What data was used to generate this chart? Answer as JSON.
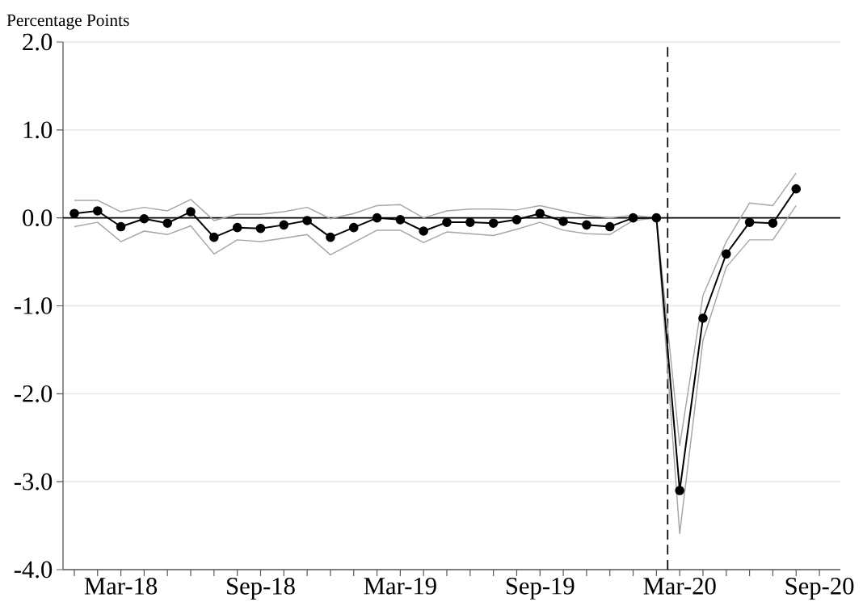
{
  "chart_data": {
    "type": "line",
    "ylabel": "Percentage Points",
    "x": [
      "2018-01",
      "2018-02",
      "2018-03",
      "2018-04",
      "2018-05",
      "2018-06",
      "2018-07",
      "2018-08",
      "2018-09",
      "2018-10",
      "2018-11",
      "2018-12",
      "2019-01",
      "2019-02",
      "2019-03",
      "2019-04",
      "2019-05",
      "2019-06",
      "2019-07",
      "2019-08",
      "2019-09",
      "2019-10",
      "2019-11",
      "2019-12",
      "2020-01",
      "2020-02",
      "2020-03",
      "2020-04",
      "2020-05",
      "2020-06",
      "2020-07",
      "2020-08"
    ],
    "series": [
      {
        "color": "#a6a6a6",
        "marker": "none",
        "values": [
          0.2,
          0.2,
          0.07,
          0.12,
          0.08,
          0.21,
          -0.03,
          0.04,
          0.04,
          0.07,
          0.12,
          -0.01,
          0.05,
          0.14,
          0.15,
          0.0,
          0.08,
          0.1,
          0.1,
          0.09,
          0.14,
          0.08,
          0.03,
          0.0,
          0.03,
          0.0,
          -2.59,
          -0.88,
          -0.27,
          0.17,
          0.14,
          0.51
        ]
      },
      {
        "color": "#a6a6a6",
        "marker": "none",
        "values": [
          -0.1,
          -0.05,
          -0.27,
          -0.15,
          -0.19,
          -0.09,
          -0.41,
          -0.25,
          -0.27,
          -0.23,
          -0.19,
          -0.42,
          -0.28,
          -0.14,
          -0.14,
          -0.28,
          -0.16,
          -0.18,
          -0.2,
          -0.13,
          -0.05,
          -0.14,
          -0.18,
          -0.19,
          -0.03,
          0.0,
          -3.59,
          -1.39,
          -0.56,
          -0.25,
          -0.25,
          0.14
        ]
      },
      {
        "color": "#000000",
        "marker": "circle",
        "values": [
          0.05,
          0.08,
          -0.1,
          -0.01,
          -0.06,
          0.07,
          -0.22,
          -0.11,
          -0.12,
          -0.08,
          -0.03,
          -0.22,
          -0.11,
          0.0,
          -0.02,
          -0.15,
          -0.05,
          -0.05,
          -0.06,
          -0.02,
          0.05,
          -0.04,
          -0.08,
          -0.1,
          0.0,
          0.0,
          -3.1,
          -1.14,
          -0.41,
          -0.05,
          -0.06,
          0.33
        ]
      }
    ],
    "xlim": [
      "2017-12-17",
      "2020-09-28"
    ],
    "xticks": [
      {
        "value": "2018-01",
        "label": null
      },
      {
        "value": "2018-02",
        "label": null
      },
      {
        "value": "2018-03",
        "label": "Mar-18"
      },
      {
        "value": "2018-04",
        "label": null
      },
      {
        "value": "2018-05",
        "label": null
      },
      {
        "value": "2018-06",
        "label": null
      },
      {
        "value": "2018-07",
        "label": null
      },
      {
        "value": "2018-08",
        "label": null
      },
      {
        "value": "2018-09",
        "label": "Sep-18"
      },
      {
        "value": "2018-10",
        "label": null
      },
      {
        "value": "2018-11",
        "label": null
      },
      {
        "value": "2018-12",
        "label": null
      },
      {
        "value": "2019-01",
        "label": null
      },
      {
        "value": "2019-02",
        "label": null
      },
      {
        "value": "2019-03",
        "label": "Mar-19"
      },
      {
        "value": "2019-04",
        "label": null
      },
      {
        "value": "2019-05",
        "label": null
      },
      {
        "value": "2019-06",
        "label": null
      },
      {
        "value": "2019-07",
        "label": null
      },
      {
        "value": "2019-08",
        "label": null
      },
      {
        "value": "2019-09",
        "label": "Sep-19"
      },
      {
        "value": "2019-10",
        "label": null
      },
      {
        "value": "2019-11",
        "label": null
      },
      {
        "value": "2019-12",
        "label": null
      },
      {
        "value": "2020-01",
        "label": null
      },
      {
        "value": "2020-02",
        "label": null
      },
      {
        "value": "2020-03",
        "label": "Mar-20"
      },
      {
        "value": "2020-04",
        "label": null
      },
      {
        "value": "2020-05",
        "label": null
      },
      {
        "value": "2020-06",
        "label": null
      },
      {
        "value": "2020-07",
        "label": null
      },
      {
        "value": "2020-08",
        "label": null
      },
      {
        "value": "2020-09",
        "label": "Sep-20"
      }
    ],
    "ylim": [
      -4,
      2
    ],
    "yticks": [
      {
        "value": -4,
        "label": "-4.0"
      },
      {
        "value": -3,
        "label": "-3.0"
      },
      {
        "value": -2,
        "label": "-2.0"
      },
      {
        "value": -1,
        "label": "-1.0"
      },
      {
        "value": 0,
        "label": "0.0"
      },
      {
        "value": 1,
        "label": "1.0"
      },
      {
        "value": 2,
        "label": "2.0"
      }
    ],
    "grid": "y",
    "ref_lines": [
      {
        "axis": "y",
        "value": 0,
        "color": "#000000",
        "line_style": "solid"
      },
      {
        "axis": "x",
        "value": "2020-02-15",
        "color": "#000000",
        "line_style": "dashed"
      }
    ]
  }
}
